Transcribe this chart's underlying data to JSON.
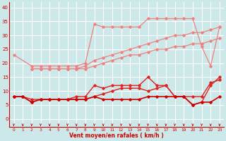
{
  "background_color": "#cce8e8",
  "grid_color": "#ffffff",
  "x_labels": [
    0,
    1,
    2,
    3,
    4,
    5,
    6,
    7,
    8,
    9,
    10,
    11,
    12,
    13,
    14,
    15,
    16,
    17,
    18,
    19,
    20,
    21,
    22,
    23
  ],
  "ylim": [
    -3,
    42
  ],
  "yticks": [
    0,
    5,
    10,
    15,
    20,
    25,
    30,
    35,
    40
  ],
  "xlabel": "Vent moyen/en rafales ( km/h )",
  "series": [
    {
      "color": "#f08080",
      "marker": "D",
      "markersize": 1.8,
      "linewidth": 0.9,
      "y": [
        23,
        null,
        19,
        19,
        19,
        19,
        19,
        19,
        20,
        34,
        33,
        33,
        33,
        33,
        33,
        36,
        36,
        36,
        36,
        36,
        36,
        26,
        19,
        33
      ]
    },
    {
      "color": "#f08080",
      "marker": "D",
      "markersize": 1.8,
      "linewidth": 0.9,
      "y": [
        null,
        null,
        18,
        18,
        18,
        18,
        18,
        18,
        19,
        21,
        22,
        23,
        24,
        25,
        26,
        27,
        28,
        29,
        30,
        30,
        31,
        31,
        32,
        33
      ]
    },
    {
      "color": "#f08080",
      "marker": "D",
      "markersize": 1.8,
      "linewidth": 0.9,
      "y": [
        null,
        null,
        18,
        18,
        18,
        18,
        18,
        18,
        18,
        19,
        20,
        21,
        22,
        23,
        23,
        24,
        25,
        25,
        26,
        26,
        27,
        27,
        28,
        29
      ]
    },
    {
      "color": "#dd2222",
      "marker": "D",
      "markersize": 1.8,
      "linewidth": 1.0,
      "y": [
        8,
        8,
        6,
        7,
        7,
        7,
        7,
        8,
        8,
        12,
        11,
        12,
        12,
        12,
        12,
        15,
        12,
        12,
        8,
        8,
        5,
        6,
        12,
        15
      ]
    },
    {
      "color": "#dd2222",
      "marker": "D",
      "markersize": 1.8,
      "linewidth": 1.0,
      "y": [
        8,
        8,
        7,
        7,
        7,
        7,
        7,
        7,
        7,
        8,
        9,
        10,
        11,
        11,
        11,
        10,
        11,
        12,
        8,
        8,
        8,
        8,
        13,
        14
      ]
    },
    {
      "color": "#cc0000",
      "marker": "D",
      "markersize": 1.8,
      "linewidth": 1.2,
      "y": [
        8,
        8,
        6,
        7,
        7,
        7,
        7,
        7,
        7,
        8,
        7,
        7,
        7,
        7,
        7,
        8,
        8,
        8,
        8,
        8,
        5,
        6,
        6,
        8
      ]
    }
  ],
  "arrow_color": "#cc0000",
  "tick_color": "#cc0000",
  "label_color": "#cc0000"
}
